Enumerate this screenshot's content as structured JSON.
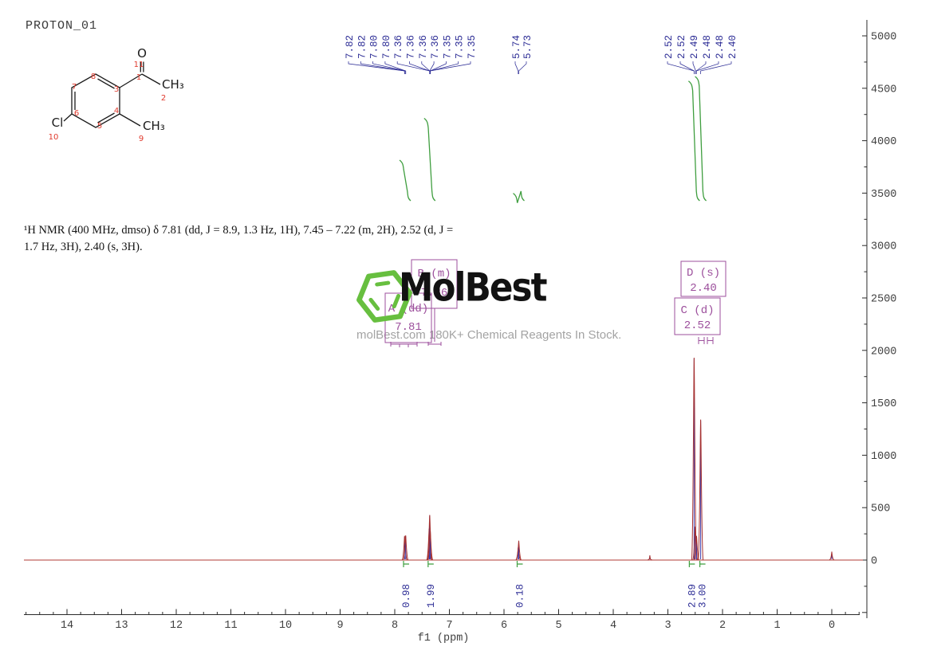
{
  "title": {
    "experiment_label": "PROTON_01"
  },
  "molecule": {
    "labels": {
      "oxygen": "O",
      "acetyl_methyl": "CH₃",
      "ring_methyl": "CH₃",
      "chlorine": "Cl"
    },
    "atom_numbers": {
      "c1": "1",
      "c2": "2",
      "c3": "3",
      "c4": "4",
      "c5": "5",
      "c6": "6",
      "c7": "7",
      "c8": "8",
      "c9": "9",
      "cl10": "10",
      "o11": "11"
    }
  },
  "citation": {
    "line": "¹H NMR (400 MHz, dmso) δ 7.81 (dd, J = 8.9, 1.3 Hz, 1H), 7.45 – 7.22 (m, 2H), 2.52 (d, J = 1.7 Hz, 3H), 2.40 (s, 3H)."
  },
  "watermark": {
    "brand": "MolBest",
    "tagline": "molBest.com 180K+ Chemical Reagents In Stock."
  },
  "chart_data": {
    "type": "line",
    "title": "PROTON_01",
    "xlabel": "f1 (ppm)",
    "x_ticks": [
      14,
      13,
      12,
      11,
      10,
      9,
      8,
      7,
      6,
      5,
      4,
      3,
      2,
      1,
      0
    ],
    "x_axis_range": [
      14.8,
      -0.52
    ],
    "ylim": [
      0,
      5000
    ],
    "y_ticks": [
      5000,
      4500,
      4000,
      3500,
      3000,
      2500,
      2000,
      1500,
      1000,
      500,
      0
    ],
    "grid": false,
    "peaks": [
      {
        "ppm": 7.82,
        "intensity": 230
      },
      {
        "ppm": 7.8,
        "intensity": 235
      },
      {
        "ppm": 7.37,
        "intensity": 300
      },
      {
        "ppm": 7.36,
        "intensity": 430
      },
      {
        "ppm": 7.35,
        "intensity": 280
      },
      {
        "ppm": 5.74,
        "intensity": 120
      },
      {
        "ppm": 5.73,
        "intensity": 185
      },
      {
        "ppm": 3.33,
        "intensity": 45
      },
      {
        "ppm": 2.52,
        "intensity": 1930
      },
      {
        "ppm": 2.5,
        "intensity": 320
      },
      {
        "ppm": 2.475,
        "intensity": 230
      },
      {
        "ppm": 2.4,
        "intensity": 1340
      },
      {
        "ppm": 0.0,
        "intensity": 80
      }
    ],
    "peak_pick_labels": [
      {
        "values": [
          "7.82",
          "7.82",
          "7.80",
          "7.80",
          "7.36",
          "7.36",
          "7.36",
          "7.36",
          "7.35",
          "7.35",
          "7.35"
        ]
      },
      {
        "values": [
          "5.74",
          "5.73"
        ]
      },
      {
        "values": [
          "2.52",
          "2.52",
          "2.49",
          "2.48",
          "2.48",
          "2.40"
        ]
      }
    ],
    "integrals": [
      {
        "ppm": 7.81,
        "value": "0.98"
      },
      {
        "ppm": 7.36,
        "value": "1.99"
      },
      {
        "ppm": 5.73,
        "value": "0.18"
      },
      {
        "ppm": 2.52,
        "value": "2.89"
      },
      {
        "ppm": 2.4,
        "value": "3.00"
      }
    ],
    "assignments": [
      {
        "label": "A (dd)",
        "shift": "7.81"
      },
      {
        "label": "B (m)",
        "shift": "7.36"
      },
      {
        "label": "C (d)",
        "shift": "2.52"
      },
      {
        "label": "D (s)",
        "shift": "2.40"
      }
    ]
  }
}
